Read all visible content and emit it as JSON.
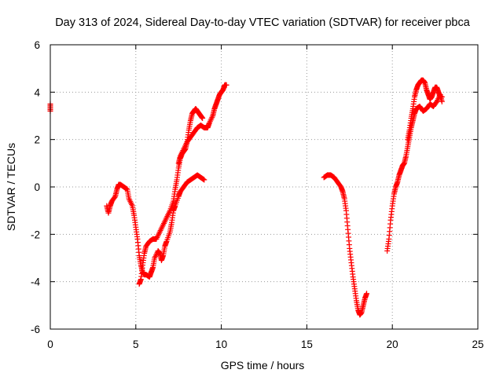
{
  "chart_data": {
    "type": "scatter",
    "title": "Day 313 of 2024, Sidereal Day-to-day VTEC variation (SDTVAR) for receiver pbca",
    "xlabel": "GPS time / hours",
    "ylabel": "SDTVAR / TECUs",
    "xlim": [
      0,
      25
    ],
    "ylim": [
      -6,
      6
    ],
    "xticks": [
      "0",
      "5",
      "10",
      "15",
      "20",
      "25"
    ],
    "yticks": [
      "-6",
      "-4",
      "-2",
      "0",
      "2",
      "4",
      "6"
    ],
    "grid": true,
    "marker": "plus",
    "series": [
      {
        "color": "#ff0000",
        "points": [
          [
            0.0,
            3.5
          ],
          [
            0.0,
            3.2
          ]
        ]
      },
      {
        "color": "#ff0000",
        "points": [
          [
            3.3,
            -0.8
          ],
          [
            3.4,
            -1.1
          ],
          [
            3.5,
            -0.8
          ],
          [
            3.6,
            -0.6
          ],
          [
            3.8,
            -0.4
          ],
          [
            3.9,
            -0.1
          ],
          [
            4.0,
            0.1
          ],
          [
            4.1,
            0.1
          ],
          [
            4.3,
            0.0
          ],
          [
            4.5,
            -0.1
          ],
          [
            4.6,
            -0.5
          ],
          [
            4.8,
            -0.8
          ],
          [
            4.9,
            -1.2
          ],
          [
            5.0,
            -1.7
          ],
          [
            5.1,
            -2.2
          ],
          [
            5.2,
            -2.9
          ],
          [
            5.3,
            -3.3
          ],
          [
            5.4,
            -3.6
          ],
          [
            5.5,
            -3.7
          ],
          [
            5.6,
            -3.7
          ],
          [
            5.8,
            -3.8
          ],
          [
            5.9,
            -3.6
          ],
          [
            6.0,
            -3.4
          ],
          [
            6.1,
            -3.0
          ],
          [
            6.3,
            -2.7
          ],
          [
            6.4,
            -2.8
          ],
          [
            6.5,
            -3.1
          ],
          [
            6.6,
            -2.9
          ],
          [
            6.7,
            -2.5
          ],
          [
            6.8,
            -2.3
          ],
          [
            7.0,
            -1.9
          ],
          [
            7.1,
            -1.5
          ],
          [
            7.2,
            -1.0
          ],
          [
            7.3,
            -0.8
          ],
          [
            7.5,
            -0.4
          ],
          [
            7.6,
            -0.2
          ],
          [
            7.8,
            0.0
          ],
          [
            8.0,
            0.2
          ],
          [
            8.2,
            0.3
          ],
          [
            8.4,
            0.4
          ],
          [
            8.6,
            0.5
          ],
          [
            8.8,
            0.4
          ],
          [
            9.0,
            0.3
          ]
        ]
      },
      {
        "color": "#ff0000",
        "points": [
          [
            5.2,
            -4.1
          ],
          [
            5.3,
            -3.9
          ],
          [
            5.4,
            -3.3
          ],
          [
            5.5,
            -2.8
          ],
          [
            5.6,
            -2.5
          ],
          [
            5.8,
            -2.3
          ],
          [
            6.0,
            -2.2
          ],
          [
            6.2,
            -2.2
          ],
          [
            6.4,
            -1.9
          ],
          [
            6.6,
            -1.6
          ],
          [
            6.8,
            -1.3
          ],
          [
            7.0,
            -1.0
          ],
          [
            7.2,
            -0.6
          ],
          [
            7.3,
            -0.1
          ],
          [
            7.4,
            0.3
          ],
          [
            7.5,
            0.8
          ],
          [
            7.6,
            1.2
          ],
          [
            7.7,
            1.4
          ],
          [
            7.8,
            1.5
          ],
          [
            7.9,
            1.6
          ],
          [
            8.0,
            1.9
          ],
          [
            8.1,
            2.4
          ],
          [
            8.2,
            2.8
          ],
          [
            8.3,
            3.1
          ],
          [
            8.4,
            3.2
          ],
          [
            8.5,
            3.3
          ],
          [
            8.6,
            3.2
          ],
          [
            8.7,
            3.1
          ],
          [
            8.8,
            3.0
          ],
          [
            8.9,
            2.9
          ]
        ]
      },
      {
        "color": "#ff0000",
        "points": [
          [
            7.5,
            1.0
          ],
          [
            7.6,
            1.3
          ],
          [
            7.8,
            1.6
          ],
          [
            8.0,
            1.9
          ],
          [
            8.2,
            2.1
          ],
          [
            8.4,
            2.3
          ],
          [
            8.6,
            2.5
          ],
          [
            8.8,
            2.6
          ],
          [
            9.0,
            2.5
          ],
          [
            9.2,
            2.5
          ],
          [
            9.3,
            2.7
          ],
          [
            9.5,
            3.0
          ],
          [
            9.6,
            3.3
          ],
          [
            9.7,
            3.5
          ],
          [
            9.8,
            3.7
          ],
          [
            9.9,
            3.9
          ],
          [
            10.0,
            4.0
          ],
          [
            10.1,
            4.1
          ],
          [
            10.2,
            4.3
          ],
          [
            10.3,
            4.3
          ]
        ]
      },
      {
        "color": "#ff0000",
        "points": [
          [
            16.0,
            0.4
          ],
          [
            16.2,
            0.5
          ],
          [
            16.4,
            0.5
          ],
          [
            16.6,
            0.4
          ],
          [
            16.8,
            0.2
          ],
          [
            17.0,
            0.0
          ],
          [
            17.1,
            -0.2
          ],
          [
            17.2,
            -0.5
          ],
          [
            17.3,
            -1.0
          ],
          [
            17.4,
            -1.8
          ],
          [
            17.5,
            -2.6
          ],
          [
            17.6,
            -3.2
          ],
          [
            17.7,
            -3.8
          ],
          [
            17.8,
            -4.3
          ],
          [
            17.9,
            -4.8
          ],
          [
            18.0,
            -5.2
          ],
          [
            18.1,
            -5.4
          ],
          [
            18.2,
            -5.3
          ],
          [
            18.3,
            -5.0
          ],
          [
            18.4,
            -4.7
          ],
          [
            18.5,
            -4.5
          ]
        ]
      },
      {
        "color": "#ff0000",
        "points": [
          [
            19.7,
            -2.7
          ],
          [
            19.8,
            -2.2
          ],
          [
            19.9,
            -1.4
          ],
          [
            20.0,
            -0.8
          ],
          [
            20.1,
            -0.3
          ],
          [
            20.2,
            0.0
          ],
          [
            20.3,
            0.2
          ],
          [
            20.4,
            0.5
          ],
          [
            20.5,
            0.7
          ],
          [
            20.6,
            0.9
          ],
          [
            20.7,
            1.0
          ],
          [
            20.8,
            1.3
          ],
          [
            20.9,
            1.7
          ],
          [
            21.0,
            2.1
          ],
          [
            21.1,
            2.5
          ],
          [
            21.2,
            2.8
          ],
          [
            21.3,
            3.1
          ],
          [
            21.4,
            3.3
          ],
          [
            21.6,
            3.4
          ],
          [
            21.8,
            3.2
          ],
          [
            22.0,
            3.3
          ],
          [
            22.2,
            3.5
          ],
          [
            22.4,
            3.4
          ],
          [
            22.6,
            3.6
          ],
          [
            22.8,
            3.9
          ],
          [
            22.9,
            3.6
          ]
        ]
      },
      {
        "color": "#ff0000",
        "points": [
          [
            20.9,
            2.0
          ],
          [
            21.0,
            2.4
          ],
          [
            21.1,
            2.9
          ],
          [
            21.2,
            3.3
          ],
          [
            21.3,
            3.8
          ],
          [
            21.4,
            4.1
          ],
          [
            21.5,
            4.3
          ],
          [
            21.6,
            4.4
          ],
          [
            21.7,
            4.5
          ],
          [
            21.8,
            4.5
          ],
          [
            21.9,
            4.4
          ],
          [
            22.0,
            4.1
          ],
          [
            22.1,
            3.9
          ],
          [
            22.2,
            3.7
          ],
          [
            22.3,
            3.8
          ],
          [
            22.4,
            4.0
          ],
          [
            22.5,
            4.2
          ],
          [
            22.6,
            4.2
          ],
          [
            22.7,
            4.0
          ],
          [
            22.8,
            3.8
          ],
          [
            22.9,
            3.8
          ]
        ]
      }
    ]
  }
}
